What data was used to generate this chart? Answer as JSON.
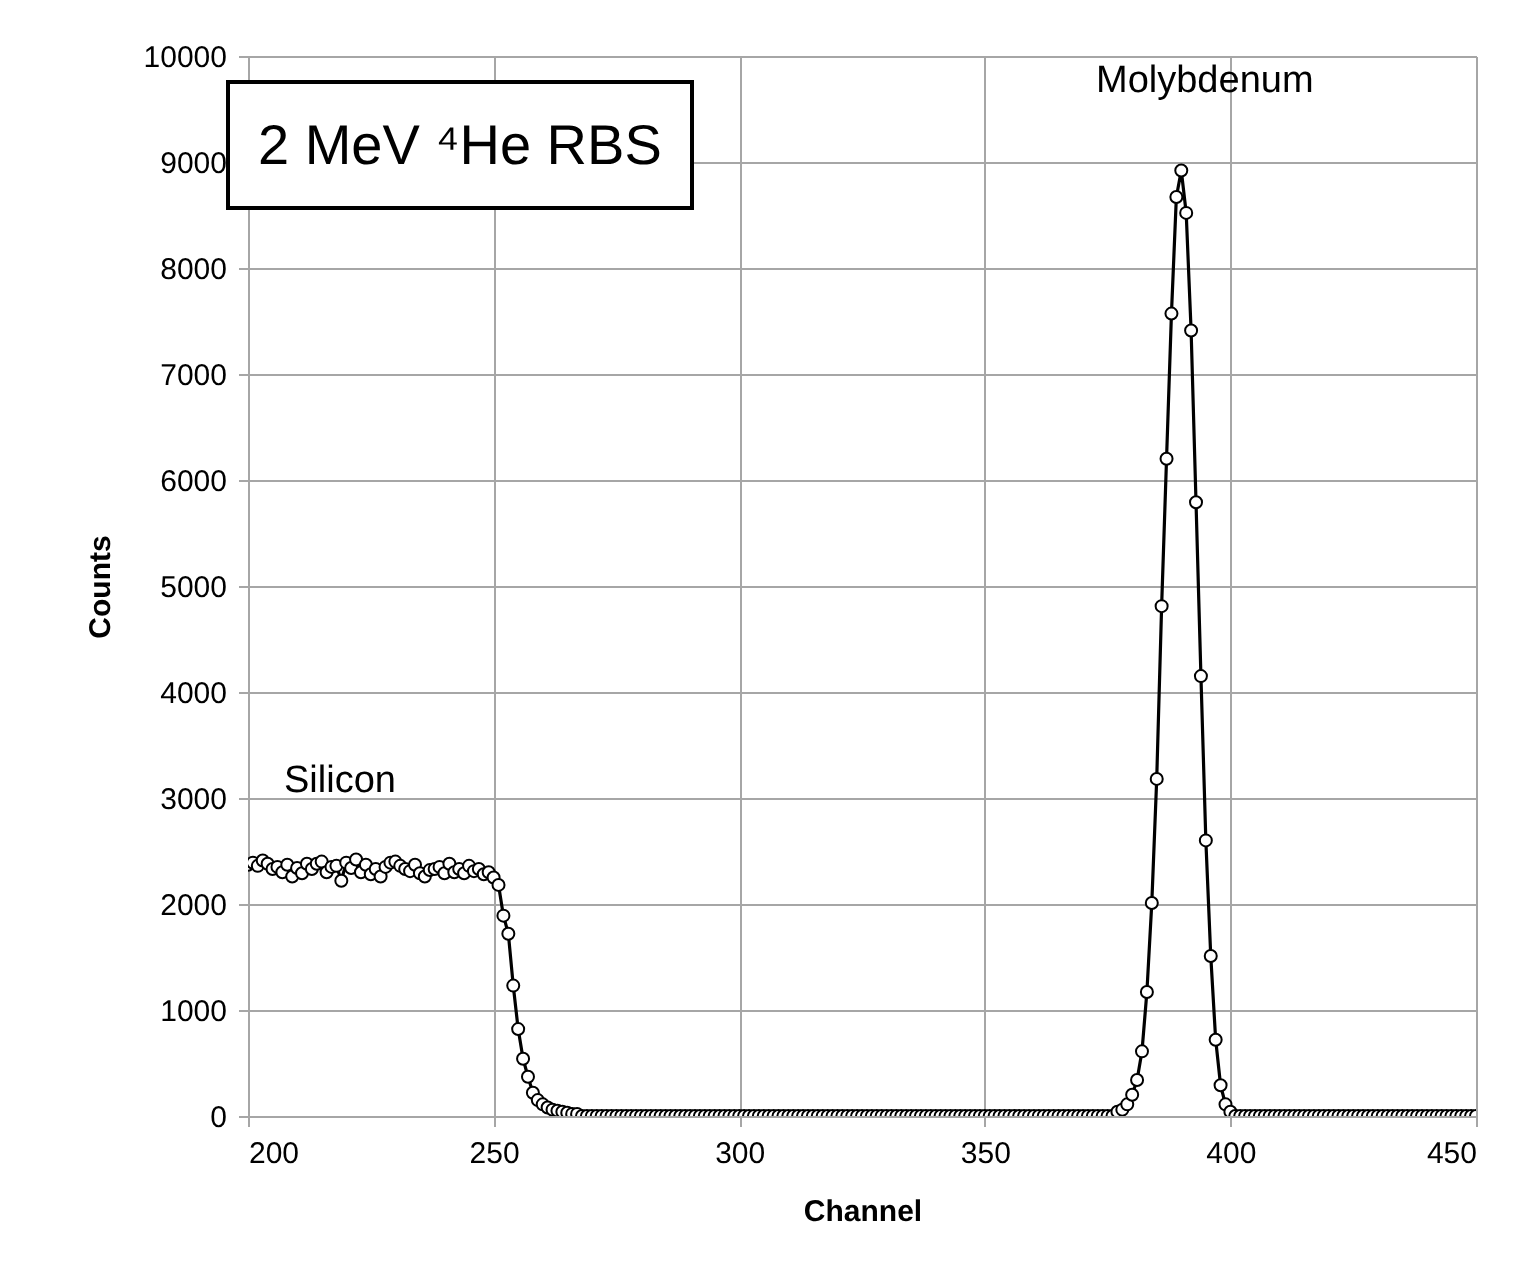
{
  "chart_data": {
    "type": "line",
    "xlabel": "Channel",
    "ylabel": "Counts",
    "annotations": [
      "2 MeV ⁴He RBS",
      "Silicon",
      "Molybdenum"
    ],
    "x": [
      200,
      201,
      202,
      203,
      204,
      205,
      206,
      207,
      208,
      209,
      210,
      211,
      212,
      213,
      214,
      215,
      216,
      217,
      218,
      219,
      220,
      221,
      222,
      223,
      224,
      225,
      226,
      227,
      228,
      229,
      230,
      231,
      232,
      233,
      234,
      235,
      236,
      237,
      238,
      239,
      240,
      241,
      242,
      243,
      244,
      245,
      246,
      247,
      248,
      249,
      250,
      251,
      252,
      253,
      254,
      255,
      256,
      257,
      258,
      259,
      260,
      261,
      262,
      263,
      264,
      265,
      266,
      267,
      268,
      269,
      270,
      271,
      272,
      273,
      274,
      275,
      276,
      277,
      278,
      279,
      280,
      281,
      282,
      283,
      284,
      285,
      286,
      287,
      288,
      289,
      290,
      291,
      292,
      293,
      294,
      295,
      296,
      297,
      298,
      299,
      300,
      301,
      302,
      303,
      304,
      305,
      306,
      307,
      308,
      309,
      310,
      311,
      312,
      313,
      314,
      315,
      316,
      317,
      318,
      319,
      320,
      321,
      322,
      323,
      324,
      325,
      326,
      327,
      328,
      329,
      330,
      331,
      332,
      333,
      334,
      335,
      336,
      337,
      338,
      339,
      340,
      341,
      342,
      343,
      344,
      345,
      346,
      347,
      348,
      349,
      350,
      351,
      352,
      353,
      354,
      355,
      356,
      357,
      358,
      359,
      360,
      361,
      362,
      363,
      364,
      365,
      366,
      367,
      368,
      369,
      370,
      371,
      372,
      373,
      374,
      375,
      376,
      377,
      378,
      379,
      380,
      381,
      382,
      383,
      384,
      385,
      386,
      387,
      388,
      389,
      390,
      391,
      392,
      393,
      394,
      395,
      396,
      397,
      398,
      399,
      400,
      401,
      402,
      403,
      404,
      405,
      406,
      407,
      408,
      409,
      410,
      411,
      412,
      413,
      414,
      415,
      416,
      417,
      418,
      419,
      420,
      421,
      422,
      423,
      424,
      425,
      426,
      427,
      428,
      429,
      430,
      431,
      432,
      433,
      434,
      435,
      436,
      437,
      438,
      439,
      440,
      441,
      442,
      443,
      444,
      445,
      446,
      447,
      448,
      449,
      450
    ],
    "series": [
      {
        "color": "#000000",
        "values": [
          2370,
          2390,
          2360,
          2410,
          2380,
          2330,
          2350,
          2300,
          2370,
          2260,
          2340,
          2290,
          2380,
          2330,
          2380,
          2400,
          2300,
          2350,
          2360,
          2220,
          2390,
          2340,
          2420,
          2300,
          2370,
          2280,
          2330,
          2260,
          2350,
          2390,
          2400,
          2360,
          2330,
          2310,
          2370,
          2290,
          2260,
          2320,
          2330,
          2350,
          2290,
          2380,
          2300,
          2330,
          2290,
          2360,
          2310,
          2330,
          2280,
          2300,
          2250,
          2180,
          1890,
          1720,
          1230,
          820,
          540,
          370,
          220,
          150,
          110,
          80,
          60,
          50,
          40,
          30,
          20,
          20,
          0,
          0,
          0,
          0,
          0,
          0,
          0,
          0,
          0,
          0,
          0,
          0,
          0,
          0,
          0,
          0,
          0,
          0,
          0,
          0,
          0,
          0,
          0,
          0,
          0,
          0,
          0,
          0,
          0,
          0,
          0,
          0,
          0,
          0,
          0,
          0,
          0,
          0,
          0,
          0,
          0,
          0,
          0,
          0,
          0,
          0,
          0,
          0,
          0,
          0,
          0,
          0,
          0,
          0,
          0,
          0,
          0,
          0,
          0,
          0,
          0,
          0,
          0,
          0,
          0,
          0,
          0,
          0,
          0,
          0,
          0,
          0,
          0,
          0,
          0,
          0,
          0,
          0,
          0,
          0,
          0,
          0,
          0,
          0,
          0,
          0,
          0,
          0,
          0,
          0,
          0,
          0,
          0,
          0,
          0,
          0,
          0,
          0,
          0,
          0,
          0,
          0,
          0,
          0,
          0,
          0,
          0,
          0,
          0,
          40,
          60,
          110,
          200,
          340,
          610,
          1170,
          2010,
          3180,
          4810,
          6200,
          7570,
          8670,
          8920,
          8520,
          7410,
          5790,
          4150,
          2600,
          1510,
          720,
          290,
          110,
          40,
          0,
          0,
          0,
          0,
          0,
          0,
          0,
          0,
          0,
          0,
          0,
          0,
          0,
          0,
          0,
          0,
          0,
          0,
          0,
          0,
          0,
          0,
          0,
          0,
          0,
          0,
          0,
          0,
          0,
          0,
          0,
          0,
          0,
          0,
          0,
          0,
          0,
          0,
          0,
          0,
          0,
          0,
          0,
          0,
          0,
          0,
          0,
          0,
          0,
          0
        ]
      }
    ],
    "xlim": [
      200,
      450
    ],
    "xticks": [
      200,
      250,
      300,
      350,
      400,
      450
    ],
    "ylim": [
      0,
      10000
    ],
    "yticks": [
      0,
      1000,
      2000,
      3000,
      4000,
      5000,
      6000,
      7000,
      8000,
      9000,
      10000
    ],
    "grid": true,
    "marker": "circle",
    "line_style": "solid"
  }
}
